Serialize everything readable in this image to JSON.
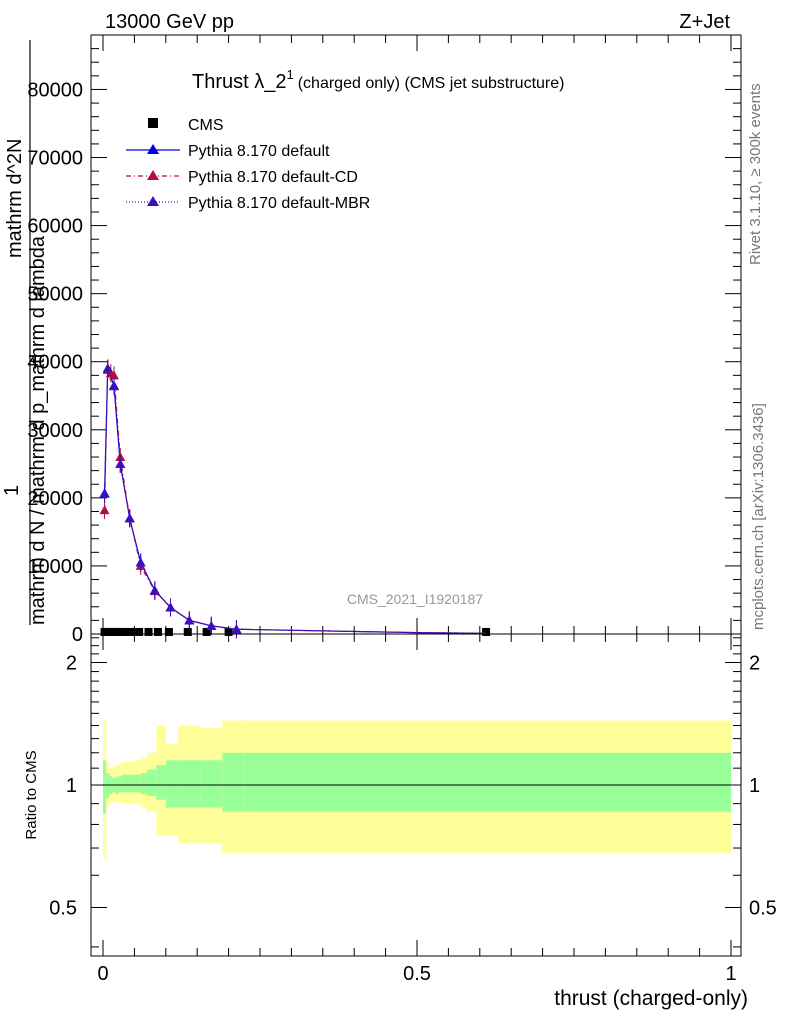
{
  "header": {
    "left": "13000 GeV pp",
    "right": "Z+Jet"
  },
  "side_text": {
    "rivet": "Rivet 3.1.10, ≥ 300k events",
    "mcplots": "mcplots.cern.ch [arXiv:1306.3436]"
  },
  "chart_data": [
    {
      "type": "line",
      "title": "Thrust λ_2^1 (charged only) (CMS jet substructure)",
      "title_main": "Thrust λ_2",
      "title_sup": "1",
      "title_rest": "(charged only) (CMS jet substructure)",
      "watermark": "CMS_2021_I1920187",
      "ylabel_lines": [
        "mathrm d lambda",
        "mathrm d p_mathrm d lambda",
        "mathrm d N / mathrm d",
        "1",
        "mathrm d^2N"
      ],
      "ylabel_fraction_num": "mathrm d^2N",
      "ylabel_fraction_den": "mathrm d N / mathrm d p_mathrm d lambda",
      "ylabel_prefix": "1",
      "xlim": [
        0,
        1
      ],
      "ylim": [
        0,
        88000
      ],
      "yticks": [
        0,
        10000,
        20000,
        30000,
        40000,
        50000,
        60000,
        70000,
        80000
      ],
      "ytick_labels": [
        "0",
        "10000",
        "20000",
        "30000",
        "40000",
        "50000",
        "60000",
        "70000",
        "80000"
      ],
      "legend_position": "top-left",
      "series": [
        {
          "name": "CMS",
          "color": "#000000",
          "marker": "square",
          "x": [
            0.0025,
            0.0075,
            0.0125,
            0.0175,
            0.0225,
            0.0275,
            0.035,
            0.045,
            0.0575,
            0.0725,
            0.0875,
            0.105,
            0.135,
            0.165,
            0.2,
            0.61
          ],
          "y": [
            300,
            300,
            300,
            300,
            300,
            300,
            300,
            300,
            300,
            300,
            300,
            300,
            300,
            300,
            300,
            300
          ]
        },
        {
          "name": "Pythia 8.170 default",
          "color": "#0000dd",
          "marker": "triangle",
          "x": [
            0.0025,
            0.0075,
            0.0175,
            0.0275,
            0.0425,
            0.06,
            0.0825,
            0.1075,
            0.1375,
            0.1725,
            0.2125,
            0.5,
            0.61
          ],
          "y": [
            20700,
            39000,
            36500,
            25000,
            17000,
            10500,
            6400,
            3900,
            2000,
            1200,
            700,
            200,
            100
          ]
        },
        {
          "name": "Pythia 8.170 default-CD",
          "color": "#b0103a",
          "marker": "triangle",
          "x": [
            0.0025,
            0.0075,
            0.0125,
            0.0175,
            0.0275,
            0.0425,
            0.06,
            0.0825,
            0.1075,
            0.1375,
            0.1725,
            0.2125,
            0.5,
            0.61
          ],
          "y": [
            18200,
            38800,
            38300,
            38000,
            26000,
            17000,
            10000,
            6300,
            3900,
            2000,
            1200,
            700,
            200,
            100
          ]
        },
        {
          "name": "Pythia 8.170 default-MBR",
          "color": "#3a10c0",
          "marker": "triangle",
          "x": [
            0.0025,
            0.0075,
            0.0175,
            0.0275,
            0.0425,
            0.06,
            0.0825,
            0.1075,
            0.1375,
            0.1725,
            0.2125,
            0.5,
            0.61
          ],
          "y": [
            20600,
            39000,
            36400,
            25000,
            17000,
            10500,
            6400,
            3900,
            2000,
            1200,
            700,
            200,
            100
          ]
        }
      ]
    },
    {
      "type": "area",
      "ylabel": "Ratio to CMS",
      "xlabel": "thrust (charged-only)",
      "xlim": [
        0,
        1
      ],
      "ylim": [
        0.38,
        2.35
      ],
      "yticks": [
        0.5,
        1,
        2
      ],
      "ytick_labels": [
        "0.5",
        "1",
        "2"
      ],
      "xticks": [
        0,
        0.5,
        1
      ],
      "xtick_labels": [
        "0",
        "0.5",
        "1"
      ],
      "reference_line": 1,
      "bands": {
        "green_color": "#99ff99",
        "yellow_color": "#ffff99",
        "edges": [
          0.0,
          0.005,
          0.01,
          0.015,
          0.02,
          0.025,
          0.03,
          0.04,
          0.05,
          0.06,
          0.07,
          0.085,
          0.1,
          0.12,
          0.155,
          0.19,
          0.225,
          1.0
        ],
        "green_lo": [
          0.85,
          0.93,
          0.95,
          0.96,
          0.95,
          0.96,
          0.96,
          0.96,
          0.96,
          0.95,
          0.94,
          0.92,
          0.88,
          0.88,
          0.88,
          0.86,
          0.86
        ],
        "green_hi": [
          1.15,
          1.07,
          1.05,
          1.04,
          1.05,
          1.05,
          1.06,
          1.06,
          1.06,
          1.07,
          1.09,
          1.12,
          1.15,
          1.15,
          1.15,
          1.2,
          1.2
        ],
        "yellow_lo": [
          0.66,
          0.88,
          0.9,
          0.91,
          0.9,
          0.91,
          0.9,
          0.9,
          0.9,
          0.88,
          0.86,
          0.75,
          0.75,
          0.72,
          0.72,
          0.68,
          0.68
        ],
        "yellow_hi": [
          1.45,
          1.14,
          1.1,
          1.11,
          1.12,
          1.13,
          1.14,
          1.14,
          1.15,
          1.17,
          1.2,
          1.4,
          1.26,
          1.4,
          1.38,
          1.44,
          1.44
        ]
      }
    }
  ]
}
